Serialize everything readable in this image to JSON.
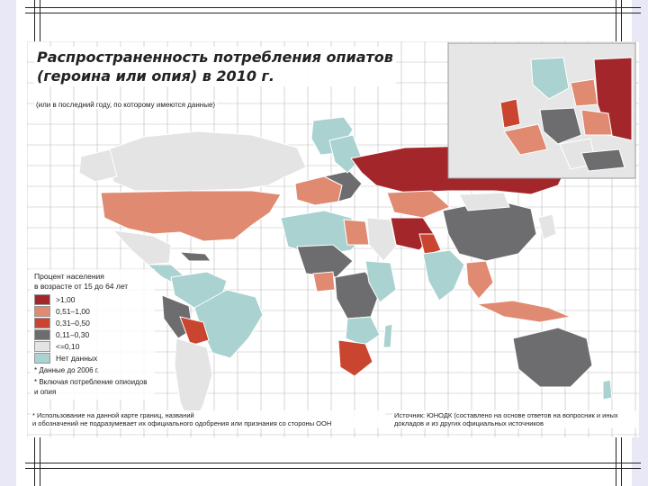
{
  "title_line1": "Распространенность потребления опиатов",
  "title_line2": "(героина или опия) в 2010 г.",
  "subtitle": "(или в последний году, по которому имеются данные)",
  "legend": {
    "title_line1": "Процент населения",
    "title_line2": "в возрасте от 15 до 64 лет",
    "items": [
      {
        "label": ">1,00",
        "color": "#a3262b"
      },
      {
        "label": "0,51–1,00",
        "color": "#e08a72"
      },
      {
        "label": "0,31–0,50",
        "color": "#c9452f"
      },
      {
        "label": "0,11–0,30",
        "color": "#6d6d6f"
      },
      {
        "label": "<=0,10",
        "color": "#e4e4e4"
      },
      {
        "label": "Нет данных",
        "color": "#a9d2d0"
      }
    ],
    "note1": "* Данные до 2006 г.",
    "note2": "* Включая потребление опиоидов и опия"
  },
  "footer_left_line1": "* Использование на данной карте границ, названий",
  "footer_left_line2": "и обозначений не подразумевает их официального одобрения или признания со стороны ООН",
  "footer_right_line1": "Источник: ЮНОДК (составлено на основе ответов на вопросник и иных",
  "footer_right_line2": "докладов и из других официальных источников",
  "map_colors": {
    "ocean": "#ffffff",
    "grid": "#b9b9b9",
    "border": "#ffffff",
    "inset_bg": "#e6e6e6"
  }
}
